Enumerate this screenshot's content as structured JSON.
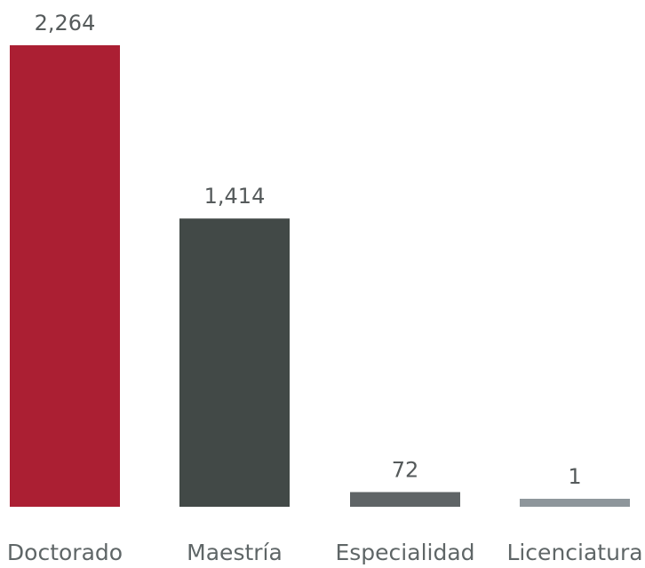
{
  "chart_data": {
    "type": "bar",
    "title": "",
    "xlabel": "",
    "ylabel": "",
    "categories": [
      "Doctorado",
      "Maestría",
      "Especialidad",
      "Licenciatura"
    ],
    "values": [
      2264,
      1414,
      72,
      1
    ],
    "value_labels": [
      "2,264",
      "1,414",
      "72",
      "1"
    ],
    "colors": [
      "#ab1f33",
      "#424947",
      "#5f6466",
      "#8e969b"
    ],
    "ylim": [
      0,
      2264
    ],
    "grid": false,
    "legend": "none"
  }
}
